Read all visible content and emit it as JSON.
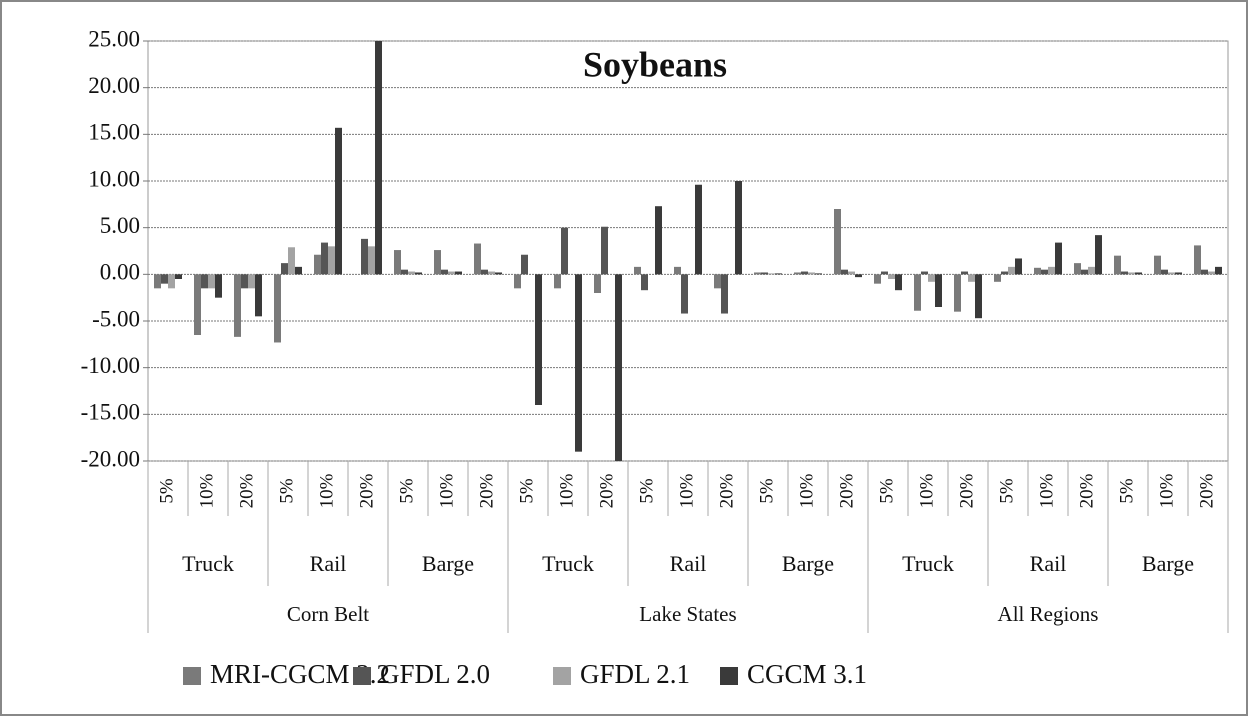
{
  "chart_data": {
    "type": "bar",
    "title": "Soybeans",
    "categories": [
      "5%",
      "10%",
      "20%",
      "5%",
      "10%",
      "20%",
      "5%",
      "10%",
      "20%",
      "5%",
      "10%",
      "20%",
      "5%",
      "10%",
      "20%",
      "5%",
      "10%",
      "20%",
      "5%",
      "10%",
      "20%",
      "5%",
      "10%",
      "20%",
      "5%",
      "10%",
      "20%"
    ],
    "modes": [
      "Truck",
      "Rail",
      "Barge",
      "Truck",
      "Rail",
      "Barge",
      "Truck",
      "Rail",
      "Barge"
    ],
    "regions": [
      "Corn Belt",
      "Lake States",
      "All Regions"
    ],
    "series": [
      {
        "name": "MRI-CGCM 2.2",
        "color": "#7a7a7a",
        "values": [
          -1.5,
          -6.5,
          -6.7,
          -7.3,
          2.1,
          0,
          2.6,
          2.6,
          3.3,
          -1.5,
          -1.5,
          -2.0,
          0.8,
          0.8,
          -1.5,
          0.2,
          0.2,
          7.0,
          -1.0,
          -3.9,
          -4.0,
          -0.8,
          0.7,
          1.2,
          2.0,
          2.0,
          3.1
        ]
      },
      {
        "name": "GFDL 2.0",
        "color": "#555555",
        "values": [
          -1.0,
          -1.5,
          -1.5,
          1.2,
          3.4,
          3.8,
          0.5,
          0.5,
          0.5,
          2.1,
          5.0,
          5.1,
          -1.7,
          -4.2,
          -4.2,
          0.2,
          0.3,
          0.5,
          0.3,
          0.3,
          0.3,
          0.3,
          0.5,
          0.5,
          0.3,
          0.5,
          0.5
        ]
      },
      {
        "name": "GFDL 2.1",
        "color": "#a3a3a3",
        "values": [
          -1.5,
          -1.5,
          -1.5,
          2.9,
          3.0,
          3.0,
          0.3,
          0.3,
          0.3,
          0,
          0,
          0,
          0,
          0,
          0,
          0.1,
          0.2,
          0.3,
          -0.5,
          -0.8,
          -0.8,
          0.8,
          0.8,
          0.8,
          0.2,
          0.2,
          0.3
        ]
      },
      {
        "name": "CGCM 3.1",
        "color": "#3a3a3a",
        "values": [
          -0.5,
          -2.5,
          -4.5,
          0.8,
          15.7,
          25.0,
          0.2,
          0.3,
          0.2,
          -14,
          -19,
          -20,
          7.3,
          9.6,
          10.0,
          0.1,
          0.1,
          -0.3,
          -1.7,
          -3.5,
          -4.7,
          1.7,
          3.4,
          4.2,
          0.2,
          0.2,
          0.8
        ]
      }
    ],
    "ylim": [
      -20,
      25
    ],
    "yticks": [
      {
        "value": 25,
        "label": "25.00"
      },
      {
        "value": 20,
        "label": "20.00"
      },
      {
        "value": 15,
        "label": "15.00"
      },
      {
        "value": 10,
        "label": "10.00"
      },
      {
        "value": 5,
        "label": "5.00"
      },
      {
        "value": 0,
        "label": "0.00"
      },
      {
        "value": -5,
        "label": "-5.00"
      },
      {
        "value": -10,
        "label": "-10.00"
      },
      {
        "value": -15,
        "label": "-15.00"
      },
      {
        "value": -20,
        "label": "-20.00"
      }
    ],
    "grid": true
  }
}
